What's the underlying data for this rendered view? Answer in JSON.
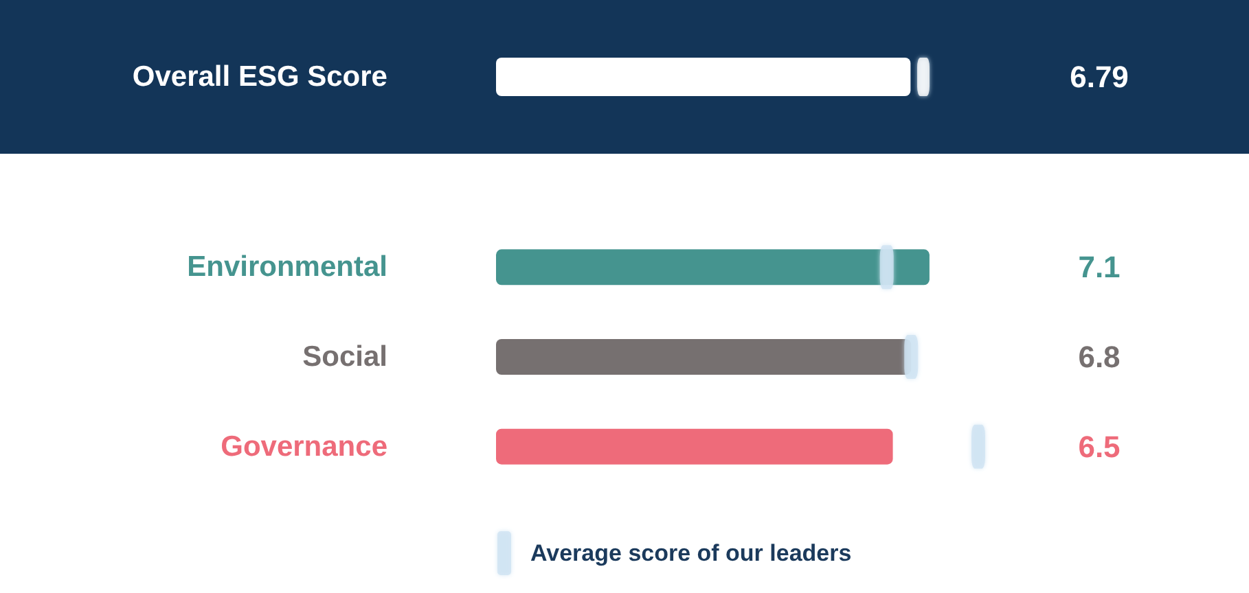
{
  "chart_data": {
    "type": "bar",
    "orientation": "horizontal",
    "categories": [
      "Overall ESG Score",
      "Environmental",
      "Social",
      "Governance"
    ],
    "tick_labels": "y",
    "legend": "bottom",
    "series": [
      {
        "colors": [
          "#ffffff",
          "#45948f",
          "#767070",
          "#ee6b7a"
        ],
        "values": [
          6.79,
          7.1,
          6.8,
          6.5
        ],
        "value_labels": [
          "6.79",
          "7.1",
          "6.8",
          "6.5"
        ]
      },
      {
        "type": "scatter",
        "name": "Average score of our leaders",
        "color": "#cfe4f3",
        "colors": [
          "#ffffff",
          "#cfe4f3",
          "#cfe4f3",
          "#cfe4f3"
        ],
        "values": [
          7.0,
          6.4,
          6.8,
          7.9
        ]
      }
    ]
  }
}
